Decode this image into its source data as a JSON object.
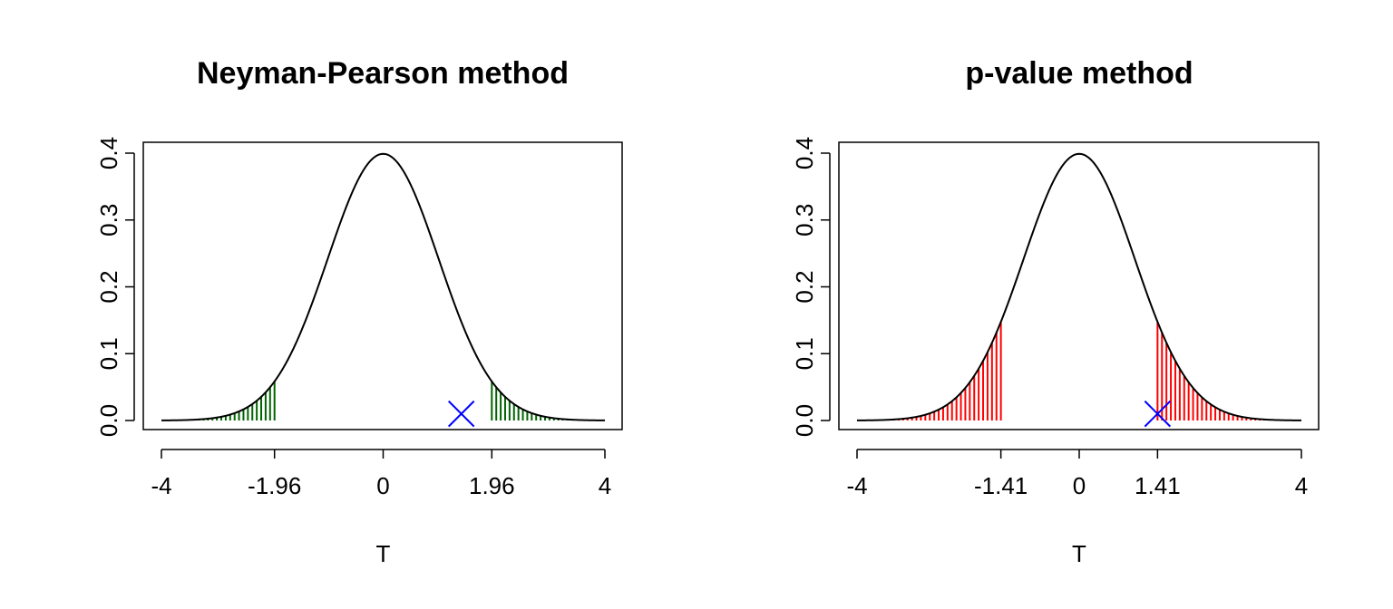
{
  "chart_data": [
    {
      "type": "line",
      "title": "Neyman-Pearson method",
      "xlabel": "T",
      "ylabel": "",
      "xlim": [
        -4,
        4
      ],
      "ylim": [
        0,
        0.4
      ],
      "xticks": [
        -4,
        -1.96,
        0,
        1.96,
        4
      ],
      "xtick_labels": [
        "-4",
        "-1.96",
        "0",
        "1.96",
        "4"
      ],
      "yticks": [
        0,
        0.1,
        0.2,
        0.3,
        0.4
      ],
      "ytick_labels": [
        "0.0",
        "0.1",
        "0.2",
        "0.3",
        "0.4"
      ],
      "series": [
        {
          "curve": "standard-normal-density",
          "color": "#000000"
        }
      ],
      "shaded_regions": [
        {
          "from": -4,
          "to": -1.96,
          "color": "#006400"
        },
        {
          "from": 1.96,
          "to": 4,
          "color": "#006400"
        }
      ],
      "marker": {
        "x": 1.41,
        "y": 0.01,
        "symbol": "x",
        "color": "#0000ff"
      }
    },
    {
      "type": "line",
      "title": "p-value method",
      "xlabel": "T",
      "ylabel": "",
      "xlim": [
        -4,
        4
      ],
      "ylim": [
        0,
        0.4
      ],
      "xticks": [
        -4,
        -1.41,
        0,
        1.41,
        4
      ],
      "xtick_labels": [
        "-4",
        "-1.41",
        "0",
        "1.41",
        "4"
      ],
      "yticks": [
        0,
        0.1,
        0.2,
        0.3,
        0.4
      ],
      "ytick_labels": [
        "0.0",
        "0.1",
        "0.2",
        "0.3",
        "0.4"
      ],
      "series": [
        {
          "curve": "standard-normal-density",
          "color": "#000000"
        }
      ],
      "shaded_regions": [
        {
          "from": -4,
          "to": -1.41,
          "color": "#ff0000"
        },
        {
          "from": 1.41,
          "to": 4,
          "color": "#ff0000"
        }
      ],
      "marker": {
        "x": 1.41,
        "y": 0.01,
        "symbol": "x",
        "color": "#0000ff"
      }
    }
  ]
}
